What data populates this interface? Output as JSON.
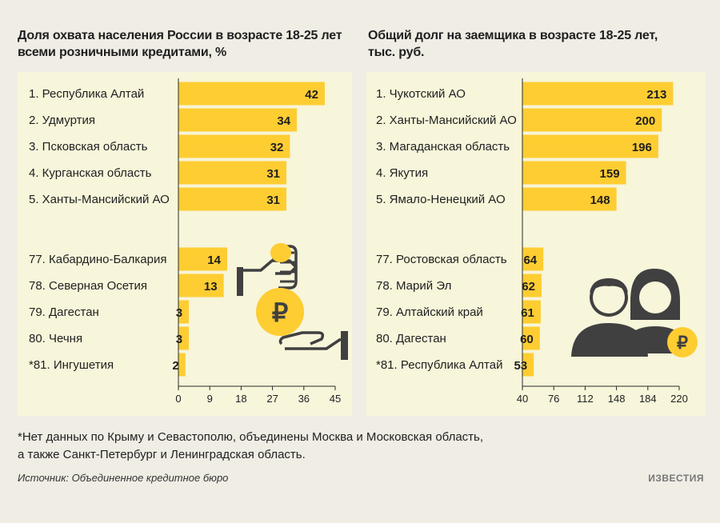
{
  "colors": {
    "bar": "#fdcd32",
    "panel": "#f7f5da",
    "background": "#efede4",
    "text": "#1f1f1f",
    "icon": "#404040"
  },
  "footnote": {
    "line1": "*Нет данных по Крыму и Севастополю, объединены Москва и Московская область,",
    "line2": "а также Санкт-Петербург и Ленинградская область."
  },
  "source": "Источник: Объединенное кредитное бюро",
  "brand": "ИЗВЕСТИЯ",
  "chart_data": [
    {
      "type": "bar",
      "orientation": "horizontal",
      "title_lines": [
        "Доля охвата населения России в возрасте 18-25 лет",
        "всеми розничными кредитами, %"
      ],
      "categories": [
        "1. Республика Алтай",
        "2. Удмуртия",
        "3. Псковская область",
        "4. Курганская область",
        "5. Ханты-Мансийский АО",
        "77. Кабардино-Балкария",
        "78. Северная Осетия",
        "79. Дагестан",
        "80. Чечня",
        "*81. Ингушетия"
      ],
      "values": [
        42,
        34,
        32,
        31,
        31,
        14,
        13,
        3,
        3,
        2
      ],
      "xlim": [
        0,
        45
      ],
      "xticks": [
        0,
        9,
        18,
        27,
        36,
        45
      ],
      "groups": "top 5 and bottom 5, separated by a gap"
    },
    {
      "type": "bar",
      "orientation": "horizontal",
      "title_lines": [
        "Общий долг на заемщика в возрасте 18-25 лет,",
        "тыс. руб."
      ],
      "categories": [
        "1. Чукотский АО",
        "2. Ханты-Мансийский АО",
        "3. Магаданская область",
        "4. Якутия",
        "5. Ямало-Ненецкий АО",
        "77. Ростовская область",
        "78. Марий Эл",
        "79. Алтайский край",
        "80. Дагестан",
        "*81. Республика Алтай"
      ],
      "values": [
        213,
        200,
        196,
        159,
        148,
        64,
        62,
        61,
        60,
        53
      ],
      "xlim": [
        40,
        220
      ],
      "xticks": [
        40,
        76,
        112,
        148,
        184,
        220
      ],
      "groups": "top 5 and bottom 5, separated by a gap"
    }
  ]
}
